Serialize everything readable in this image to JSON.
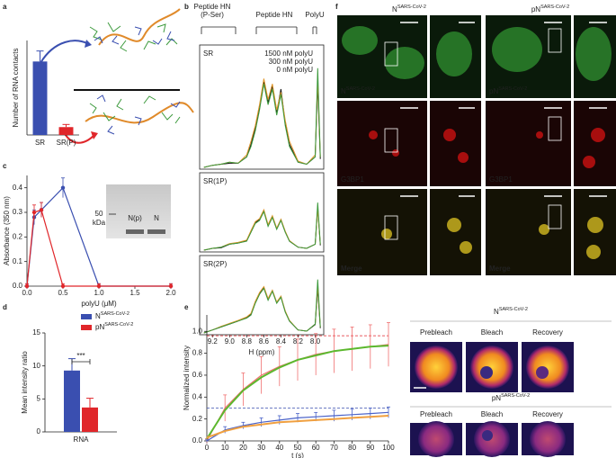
{
  "panel_labels": [
    "a",
    "b",
    "c",
    "d",
    "e",
    "f"
  ],
  "chart_data": [
    {
      "type": "bar",
      "ylabel": "Number of RNA contacts",
      "categories": [
        "SR",
        "SR(P)"
      ],
      "values": [
        2.8,
        0.3
      ],
      "errors": [
        0.4,
        0.1
      ],
      "colors": [
        "#3a4fb0",
        "#e0262a"
      ],
      "ylim": [
        0,
        3.6
      ]
    },
    {
      "type": "spectrum",
      "annotations": [
        [
          "Peptide HN",
          "(P-Ser)"
        ],
        [
          "Peptide HN"
        ],
        [
          "PolyU"
        ]
      ],
      "xlabel": "H (ppm)",
      "xlim": [
        9.35,
        7.9
      ],
      "xticks": [
        9.2,
        {
          "value": 9.0,
          "label": "9.0"
        },
        8.8,
        8.6,
        8.4,
        8.2,
        {
          "value": 8.0,
          "label": "8.0"
        }
      ],
      "legend": [
        {
          "name": "1500 nM polyU",
          "color": "#3d9a3d"
        },
        {
          "name": "300 nM polyU",
          "color": "#e0962a"
        },
        {
          "name": "0 nM polyU",
          "color": "#111111"
        }
      ],
      "x": [
        9.3,
        9.2,
        9.1,
        9.0,
        8.9,
        8.8,
        8.75,
        8.7,
        8.65,
        8.6,
        8.55,
        8.5,
        8.45,
        8.4,
        8.35,
        8.3,
        8.2,
        8.1,
        8.0,
        7.97,
        7.94
      ],
      "ylim": [
        0,
        1
      ],
      "panels": [
        {
          "name": "SR",
          "series": [
            [
              0,
              0.02,
              0.03,
              0.05,
              0.04,
              0.1,
              0.2,
              0.35,
              0.55,
              0.8,
              0.6,
              0.75,
              0.5,
              0.7,
              0.4,
              0.2,
              0.05,
              0.03,
              0.1,
              0.95,
              0.1
            ],
            [
              0,
              0.02,
              0.03,
              0.05,
              0.04,
              0.12,
              0.25,
              0.4,
              0.6,
              0.85,
              0.65,
              0.8,
              0.55,
              0.72,
              0.45,
              0.25,
              0.06,
              0.03,
              0.12,
              0.85,
              0.1
            ],
            [
              0,
              0.02,
              0.03,
              0.04,
              0.04,
              0.1,
              0.22,
              0.38,
              0.58,
              0.82,
              0.62,
              0.78,
              0.52,
              0.75,
              0.42,
              0.22,
              0.05,
              0.03,
              0.1,
              0.8,
              0.08
            ]
          ]
        },
        {
          "name": "SR(1P)",
          "series": [
            [
              0,
              0.03,
              0.05,
              0.1,
              0.12,
              0.15,
              0.3,
              0.45,
              0.5,
              0.65,
              0.4,
              0.55,
              0.35,
              0.5,
              0.3,
              0.15,
              0.05,
              0.03,
              0.1,
              0.8,
              0.1
            ],
            [
              0,
              0.03,
              0.05,
              0.11,
              0.13,
              0.17,
              0.33,
              0.48,
              0.53,
              0.68,
              0.43,
              0.58,
              0.37,
              0.52,
              0.32,
              0.16,
              0.05,
              0.03,
              0.1,
              0.7,
              0.1
            ],
            [
              0,
              0.03,
              0.04,
              0.1,
              0.12,
              0.16,
              0.31,
              0.46,
              0.52,
              0.66,
              0.42,
              0.56,
              0.36,
              0.51,
              0.31,
              0.15,
              0.05,
              0.03,
              0.1,
              0.72,
              0.08
            ]
          ]
        },
        {
          "name": "SR(2P)",
          "series": [
            [
              0,
              0.05,
              0.1,
              0.15,
              0.2,
              0.25,
              0.3,
              0.5,
              0.65,
              0.75,
              0.55,
              0.7,
              0.5,
              0.6,
              0.35,
              0.2,
              0.05,
              0.03,
              0.15,
              0.9,
              0.1
            ],
            [
              0,
              0.05,
              0.11,
              0.16,
              0.21,
              0.27,
              0.33,
              0.53,
              0.68,
              0.78,
              0.58,
              0.72,
              0.52,
              0.62,
              0.37,
              0.21,
              0.05,
              0.03,
              0.15,
              0.8,
              0.1
            ],
            [
              0,
              0.05,
              0.1,
              0.15,
              0.2,
              0.26,
              0.31,
              0.51,
              0.66,
              0.76,
              0.56,
              0.71,
              0.51,
              0.61,
              0.36,
              0.2,
              0.05,
              0.03,
              0.14,
              0.75,
              0.08
            ]
          ]
        }
      ]
    },
    {
      "type": "line",
      "ylabel": "Absorbance (350 nm)",
      "xlabel": "polyU (μM)",
      "x": [
        0,
        0.1,
        0.2,
        0.5,
        1,
        2
      ],
      "markers": true,
      "series": [
        {
          "color": "#3a4fb0",
          "values": [
            0,
            0.28,
            0.31,
            0.4,
            0,
            0
          ],
          "errors": [
            0.01,
            0.03,
            0.03,
            0.04,
            0.01,
            0.01
          ]
        },
        {
          "color": "#e0262a",
          "values": [
            0,
            0.3,
            0.31,
            0,
            0,
            0
          ],
          "errors": [
            0.01,
            0.03,
            0.03,
            0.01,
            0.01,
            0.01
          ]
        }
      ],
      "xlim": [
        0,
        2
      ],
      "xticks": [
        {
          "value": 0,
          "label": "0.0"
        },
        0.5,
        {
          "value": 1,
          "label": "1.0"
        },
        1.5,
        {
          "value": 2,
          "label": "2.0"
        }
      ],
      "ylim": [
        0,
        0.45
      ],
      "yticks": [
        {
          "value": 0,
          "label": "0.0"
        },
        0.1,
        0.2,
        0.3,
        0.4
      ],
      "inset": {
        "marker": [
          "50",
          "kDa"
        ],
        "lanes": [
          {
            "label": "N(p)",
            "color": "#e0262a"
          },
          {
            "label": "N",
            "color": "#3a4fb0"
          }
        ]
      }
    },
    {
      "type": "bar",
      "ylabel": "Mean intensity ratio",
      "categories": [
        "RNA"
      ],
      "series": [
        {
          "name": "N",
          "superscript": "SARS-CoV-2",
          "color": "#3a4fb0",
          "values": [
            9.3
          ],
          "errors": [
            1.8
          ]
        },
        {
          "name": "pN",
          "superscript": "SARS-CoV-2",
          "color": "#e0262a",
          "values": [
            3.7
          ],
          "errors": [
            1.4
          ]
        }
      ],
      "significance": "***",
      "ylim": [
        0,
        15
      ],
      "yticks": [
        0,
        5,
        10,
        15
      ]
    },
    {
      "type": "line",
      "ylabel": "Normalized intensity",
      "xlabel": "t (s)",
      "x": [
        0,
        10,
        20,
        30,
        40,
        50,
        60,
        70,
        80,
        90,
        100
      ],
      "series": [
        {
          "color": "#f07070",
          "values": [
            0,
            0.3,
            0.47,
            0.6,
            0.68,
            0.74,
            0.79,
            0.82,
            0.84,
            0.86,
            0.88
          ],
          "errors": [
            0.02,
            0.12,
            0.15,
            0.17,
            0.18,
            0.19,
            0.19,
            0.2,
            0.2,
            0.2,
            0.2
          ]
        },
        {
          "color": "#4a62c8",
          "values": [
            0,
            0.1,
            0.14,
            0.17,
            0.19,
            0.21,
            0.22,
            0.23,
            0.24,
            0.25,
            0.26
          ],
          "errors": [
            0.01,
            0.03,
            0.03,
            0.04,
            0.04,
            0.04,
            0.04,
            0.05,
            0.05,
            0.05,
            0.05
          ]
        },
        {
          "color": "#5cb82e",
          "values": [
            0.02,
            0.28,
            0.46,
            0.58,
            0.67,
            0.74,
            0.78,
            0.82,
            0.84,
            0.86,
            0.87
          ]
        },
        {
          "color": "#f0a040",
          "values": [
            0.03,
            0.09,
            0.13,
            0.15,
            0.17,
            0.18,
            0.19,
            0.2,
            0.21,
            0.22,
            0.23
          ]
        }
      ],
      "reference_lines": [
        {
          "value": 0.96,
          "color": "#e0262a"
        },
        {
          "value": 0.3,
          "color": "#3a4fb0"
        }
      ],
      "xlim": [
        0,
        100
      ],
      "xticks": [
        0,
        10,
        20,
        30,
        40,
        50,
        60,
        70,
        80,
        90,
        100
      ],
      "ylim": [
        0,
        1.15
      ],
      "yticks": [
        {
          "value": 0,
          "label": "0.0"
        },
        0.2,
        0.4,
        0.6,
        0.8,
        {
          "value": 1,
          "label": "1.0"
        }
      ]
    }
  ],
  "frap_images": {
    "groups": [
      {
        "name": "N",
        "superscript": "SARS-CoV-2"
      },
      {
        "name": "pN",
        "superscript": "SARS-CoV-2"
      }
    ],
    "stages": [
      "Prebleach",
      "Bleach",
      "Recovery"
    ]
  },
  "microscopy": {
    "columns": [
      {
        "name": "N",
        "superscript": "SARS-CoV-2"
      },
      {
        "name": "pN",
        "superscript": "SARS-CoV-2"
      }
    ],
    "rows": [
      "G3BP1",
      "Merge"
    ]
  }
}
